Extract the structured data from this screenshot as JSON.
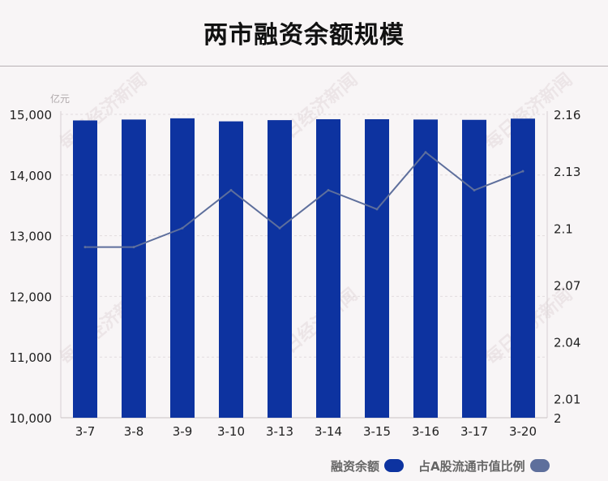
{
  "title": "两市融资余额规模",
  "watermark_text": "每日经济新闻",
  "chart_data": {
    "type": "bar",
    "title": "两市融资余额规模",
    "unit_label": "亿元",
    "categories": [
      "3-7",
      "3-8",
      "3-9",
      "3-10",
      "3-13",
      "3-14",
      "3-15",
      "3-16",
      "3-17",
      "3-20"
    ],
    "series": [
      {
        "name": "融资余额",
        "type": "bar",
        "axis": "left",
        "color": "#0d33a0",
        "values": [
          14900,
          14915,
          14935,
          14885,
          14905,
          14920,
          14920,
          14915,
          14910,
          14930
        ]
      },
      {
        "name": "占A股流通市值比例",
        "type": "line",
        "axis": "right",
        "color": "#5e6f9c",
        "values": [
          2.09,
          2.09,
          2.1,
          2.12,
          2.1,
          2.12,
          2.11,
          2.14,
          2.12,
          2.13
        ]
      }
    ],
    "y_left": {
      "range": [
        10000,
        15000
      ],
      "ticks": [
        10000,
        11000,
        12000,
        13000,
        14000,
        15000
      ],
      "tick_labels": [
        "10,000",
        "11,000",
        "12,000",
        "13,000",
        "14,000",
        "15,000"
      ]
    },
    "y_right": {
      "range": [
        2.0,
        2.16
      ],
      "ticks": [
        2.0,
        2.01,
        2.04,
        2.07,
        2.1,
        2.13,
        2.16
      ],
      "tick_labels": [
        "2",
        "2.01",
        "2.04",
        "2.07",
        "2.1",
        "2.13",
        "2.16"
      ]
    },
    "grid": "horizontal-dashed",
    "legend_position": "bottom-right"
  },
  "legend": [
    {
      "label": "融资余额",
      "color": "#0d33a0"
    },
    {
      "label": "占A股流通市值比例",
      "color": "#5e6f9c"
    }
  ]
}
